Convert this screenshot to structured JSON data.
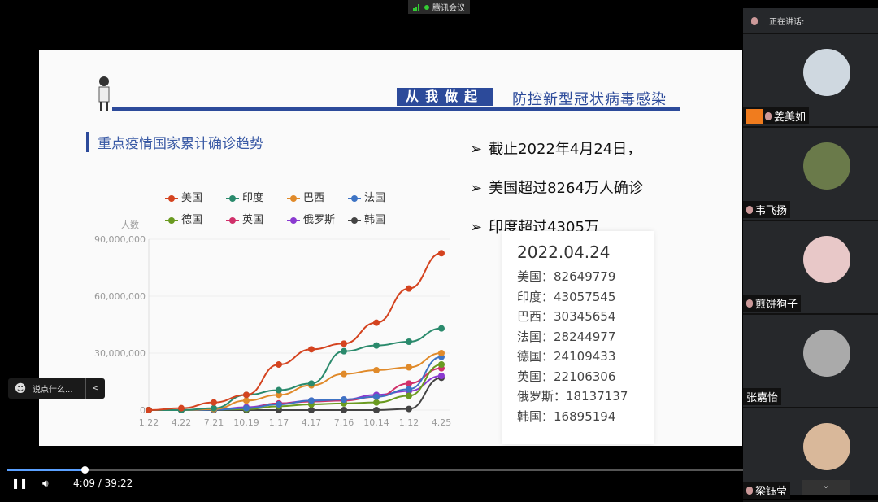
{
  "app": {
    "title": "腾讯会议"
  },
  "slide": {
    "banner_box": "从我做起",
    "banner_text": "防控新型冠状病毒感染",
    "subtitle": "重点疫情国家累计确诊趋势",
    "bullets": [
      "截止2022年4月24日，",
      "美国超过8264万人确诊",
      "印度超过4305万"
    ],
    "card": {
      "date": "2022.04.24",
      "rows": [
        {
          "country": "美国：",
          "value": "82649779"
        },
        {
          "country": "印度：",
          "value": "43057545"
        },
        {
          "country": "巴西：",
          "value": "30345654"
        },
        {
          "country": "法国：",
          "value": "28244977"
        },
        {
          "country": "德国：",
          "value": "24109433"
        },
        {
          "country": "英国：",
          "value": "22106306"
        },
        {
          "country": "俄罗斯：",
          "value": "18137137"
        },
        {
          "country": "韩国：",
          "value": "16895194"
        }
      ]
    }
  },
  "chart_data": {
    "type": "line",
    "ylabel": "人数",
    "ylim": [
      0,
      90000000
    ],
    "yticks": [
      "0",
      "30,000,000",
      "60,000,000",
      "90,000,000"
    ],
    "categories": [
      "1.22",
      "4.22",
      "7.21",
      "10.19",
      "1.17",
      "4.17",
      "7.16",
      "10.14",
      "1.12",
      "4.25"
    ],
    "series": [
      {
        "name": "美国",
        "color": "#d4431f",
        "values": [
          0,
          1000000,
          4000000,
          8000000,
          24000000,
          32000000,
          35000000,
          46000000,
          64000000,
          82600000
        ]
      },
      {
        "name": "印度",
        "color": "#2a8a6c",
        "values": [
          0,
          0,
          1000000,
          8000000,
          10500000,
          14000000,
          31000000,
          34000000,
          36000000,
          43000000
        ]
      },
      {
        "name": "巴西",
        "color": "#e08a2a",
        "values": [
          0,
          0,
          500000,
          5000000,
          8000000,
          13000000,
          19000000,
          21000000,
          22500000,
          30000000
        ]
      },
      {
        "name": "法国",
        "color": "#3d73c4",
        "values": [
          0,
          0,
          200000,
          1000000,
          3000000,
          5000000,
          5500000,
          7000000,
          11000000,
          28000000
        ]
      },
      {
        "name": "德国",
        "color": "#6a9a20",
        "values": [
          0,
          0,
          200000,
          500000,
          2000000,
          3000000,
          3500000,
          4000000,
          7500000,
          24000000
        ]
      },
      {
        "name": "英国",
        "color": "#d0306a",
        "values": [
          0,
          0,
          300000,
          1000000,
          3500000,
          4500000,
          5000000,
          7000000,
          14000000,
          22000000
        ]
      },
      {
        "name": "俄罗斯",
        "color": "#8a3ad0",
        "values": [
          0,
          0,
          200000,
          1500000,
          3500000,
          5000000,
          5500000,
          8000000,
          10000000,
          18000000
        ]
      },
      {
        "name": "韩国",
        "color": "#444444",
        "values": [
          0,
          0,
          0,
          0,
          0,
          0,
          0,
          0,
          600000,
          17000000
        ]
      }
    ]
  },
  "sidebar": {
    "speaking_label": "正在讲话:",
    "participants": [
      "姜美如",
      "韦飞扬",
      "煎饼狗子",
      "张嘉怡",
      "梁钰莹"
    ]
  },
  "chat": {
    "placeholder": "说点什么...",
    "collapse": "<"
  },
  "player": {
    "current": "4:09",
    "total": "39:22",
    "separator": " / ",
    "progress": 0.106,
    "down": "⌄"
  }
}
